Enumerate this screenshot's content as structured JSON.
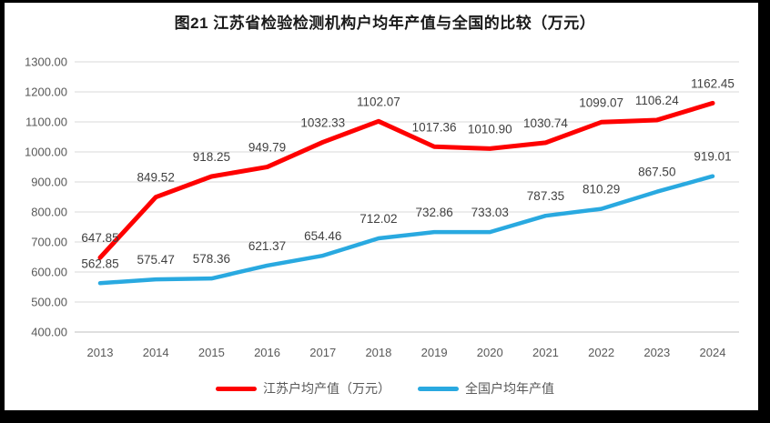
{
  "chart_data": {
    "type": "line",
    "title": "图21  江苏省检验检测机构户均年产值与全国的比较（万元）",
    "categories": [
      "2013",
      "2014",
      "2015",
      "2016",
      "2017",
      "2018",
      "2019",
      "2020",
      "2021",
      "2022",
      "2023",
      "2024"
    ],
    "series": [
      {
        "name": "江苏户均产值（万元）",
        "color": "#FE0000",
        "values": [
          647.85,
          849.52,
          918.25,
          949.79,
          1032.33,
          1102.07,
          1017.36,
          1010.9,
          1030.74,
          1099.07,
          1106.24,
          1162.45
        ]
      },
      {
        "name": "全国户均年产值",
        "color": "#29A9E0",
        "values": [
          562.85,
          575.47,
          578.36,
          621.37,
          654.46,
          712.02,
          732.86,
          733.03,
          787.35,
          810.29,
          867.5,
          919.01
        ]
      }
    ],
    "xlabel": "",
    "ylabel": "",
    "ylim": [
      400,
      1300
    ],
    "y_tick_step": 100,
    "y_tick_decimals": 2,
    "data_labels": true,
    "data_label_decimals": 2,
    "grid": true,
    "legend_position": "bottom"
  },
  "style_colors": {
    "gridline": "#D9D9D9",
    "axis_line": "#BFBFBF",
    "tick_text": "#595959",
    "data_label_text": "#404040",
    "title_text": "#1a1a1a",
    "frame_border": "#000000"
  }
}
